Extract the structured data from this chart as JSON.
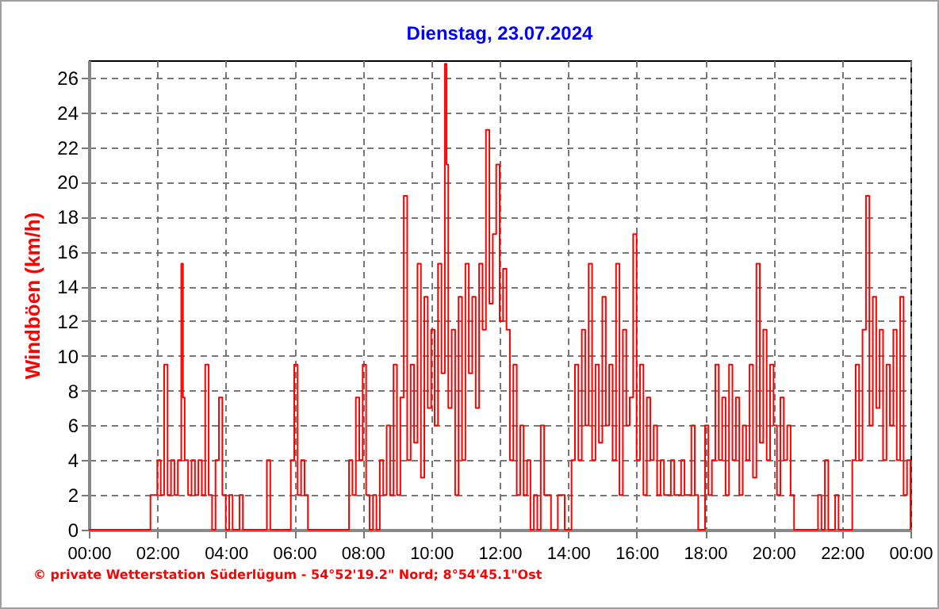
{
  "chart_data": {
    "type": "step",
    "title": "Dienstag, 23.07.2024",
    "ylabel": "Windböen  (km/h)",
    "annotations": [
      "© private Wetterstation Süderlügum  -  54°52'19.2\" Nord; 8°54'45.1\"Ost"
    ],
    "xlim": [
      0,
      24
    ],
    "xticks": [
      {
        "value": 0,
        "label": "00:00"
      },
      {
        "value": 2,
        "label": "02:00"
      },
      {
        "value": 4,
        "label": "04:00"
      },
      {
        "value": 6,
        "label": "06:00"
      },
      {
        "value": 8,
        "label": "08:00"
      },
      {
        "value": 10,
        "label": "10:00"
      },
      {
        "value": 12,
        "label": "12:00"
      },
      {
        "value": 14,
        "label": "14:00"
      },
      {
        "value": 16,
        "label": "16:00"
      },
      {
        "value": 18,
        "label": "18:00"
      },
      {
        "value": 20,
        "label": "20:00"
      },
      {
        "value": 22,
        "label": "22:00"
      },
      {
        "value": 24,
        "label": "00:00"
      }
    ],
    "ylim": [
      0,
      27
    ],
    "yticks": [
      0,
      2,
      4,
      6,
      8,
      10,
      12,
      14,
      16,
      18,
      20,
      22,
      24,
      26
    ],
    "grid": true,
    "marker": "none",
    "line_style": "solid",
    "x": [
      0,
      1.8,
      2.0,
      2.1,
      2.2,
      2.3,
      2.4,
      2.5,
      2.6,
      2.7,
      2.75,
      2.8,
      2.9,
      3.0,
      3.1,
      3.2,
      3.3,
      3.4,
      3.5,
      3.6,
      3.7,
      3.8,
      3.9,
      4.0,
      4.1,
      4.2,
      4.4,
      4.5,
      5.2,
      5.3,
      5.9,
      6.0,
      6.1,
      6.2,
      6.3,
      6.4,
      7.6,
      7.7,
      7.8,
      7.9,
      8.0,
      8.1,
      8.2,
      8.3,
      8.4,
      8.5,
      8.6,
      8.7,
      8.8,
      8.9,
      9.0,
      9.1,
      9.2,
      9.3,
      9.4,
      9.5,
      9.6,
      9.7,
      9.8,
      9.9,
      10.0,
      10.1,
      10.2,
      10.3,
      10.4,
      10.45,
      10.5,
      10.6,
      10.7,
      10.8,
      10.9,
      11.0,
      11.1,
      11.2,
      11.3,
      11.4,
      11.5,
      11.6,
      11.7,
      11.8,
      11.9,
      12.0,
      12.1,
      12.2,
      12.3,
      12.4,
      12.5,
      12.6,
      12.7,
      12.8,
      12.9,
      13.0,
      13.1,
      13.2,
      13.3,
      13.5,
      13.7,
      13.9,
      14.1,
      14.2,
      14.3,
      14.4,
      14.5,
      14.6,
      14.7,
      14.8,
      14.9,
      15.0,
      15.1,
      15.2,
      15.3,
      15.4,
      15.5,
      15.6,
      15.7,
      15.8,
      15.9,
      16.0,
      16.1,
      16.2,
      16.3,
      16.4,
      16.5,
      16.6,
      16.7,
      16.8,
      17.0,
      17.1,
      17.3,
      17.4,
      17.6,
      17.7,
      17.8,
      18.0,
      18.1,
      18.2,
      18.3,
      18.4,
      18.5,
      18.6,
      18.7,
      18.8,
      18.9,
      19.0,
      19.1,
      19.2,
      19.3,
      19.4,
      19.5,
      19.6,
      19.7,
      19.8,
      19.9,
      20.0,
      20.1,
      20.2,
      20.3,
      20.4,
      20.5,
      20.6,
      21.3,
      21.4,
      21.5,
      21.6,
      21.8,
      21.9,
      22.3,
      22.4,
      22.5,
      22.6,
      22.7,
      22.8,
      22.9,
      23.0,
      23.1,
      23.2,
      23.3,
      23.4,
      23.5,
      23.6,
      23.7,
      23.8,
      23.9,
      24.0
    ],
    "series": [
      {
        "color": "#ff0000",
        "values": [
          0,
          2,
          4,
          2,
          9.5,
          2,
          4,
          2,
          4,
          15.3,
          7.6,
          4,
          2,
          4,
          2,
          4,
          2,
          9.5,
          2,
          0,
          4,
          7.6,
          2,
          0,
          2,
          0,
          2,
          0,
          4,
          0,
          4,
          9.5,
          2,
          4,
          2,
          0,
          4,
          2,
          7.6,
          4,
          9.5,
          2,
          0,
          2,
          0,
          4,
          2,
          6,
          2,
          9.5,
          2,
          7.6,
          19.2,
          4,
          9.5,
          5,
          15.3,
          3,
          13.4,
          7,
          11.5,
          6,
          15.3,
          9,
          26.8,
          21,
          7,
          11.5,
          2,
          13.4,
          4,
          15.3,
          9,
          13.4,
          7,
          15.3,
          11.5,
          23,
          13,
          17,
          21,
          12,
          15,
          11.5,
          4,
          9.5,
          2,
          6,
          2,
          4,
          0,
          2,
          0,
          6,
          2,
          0,
          2,
          0,
          4,
          9.5,
          4,
          11.5,
          6,
          15.3,
          4,
          9.5,
          5,
          13.4,
          6,
          9.5,
          4,
          15.3,
          2,
          11.5,
          6,
          7.6,
          17,
          4,
          9.5,
          2,
          7.6,
          4,
          6,
          2,
          4,
          2,
          4,
          2,
          4,
          2,
          6,
          2,
          0,
          6,
          2,
          4,
          9.5,
          4,
          7.6,
          2,
          9.5,
          4,
          7.6,
          2,
          6,
          4,
          9.5,
          3,
          15.3,
          5,
          11.5,
          4,
          9.5,
          6,
          2,
          7.6,
          4,
          6,
          2,
          0,
          2,
          0,
          4,
          0,
          2,
          0,
          4,
          9.5,
          4,
          11.5,
          19.2,
          6,
          13.4,
          7,
          11.5,
          4,
          9.5,
          6,
          11.5,
          4,
          13.4,
          2,
          4,
          0
        ]
      }
    ]
  }
}
